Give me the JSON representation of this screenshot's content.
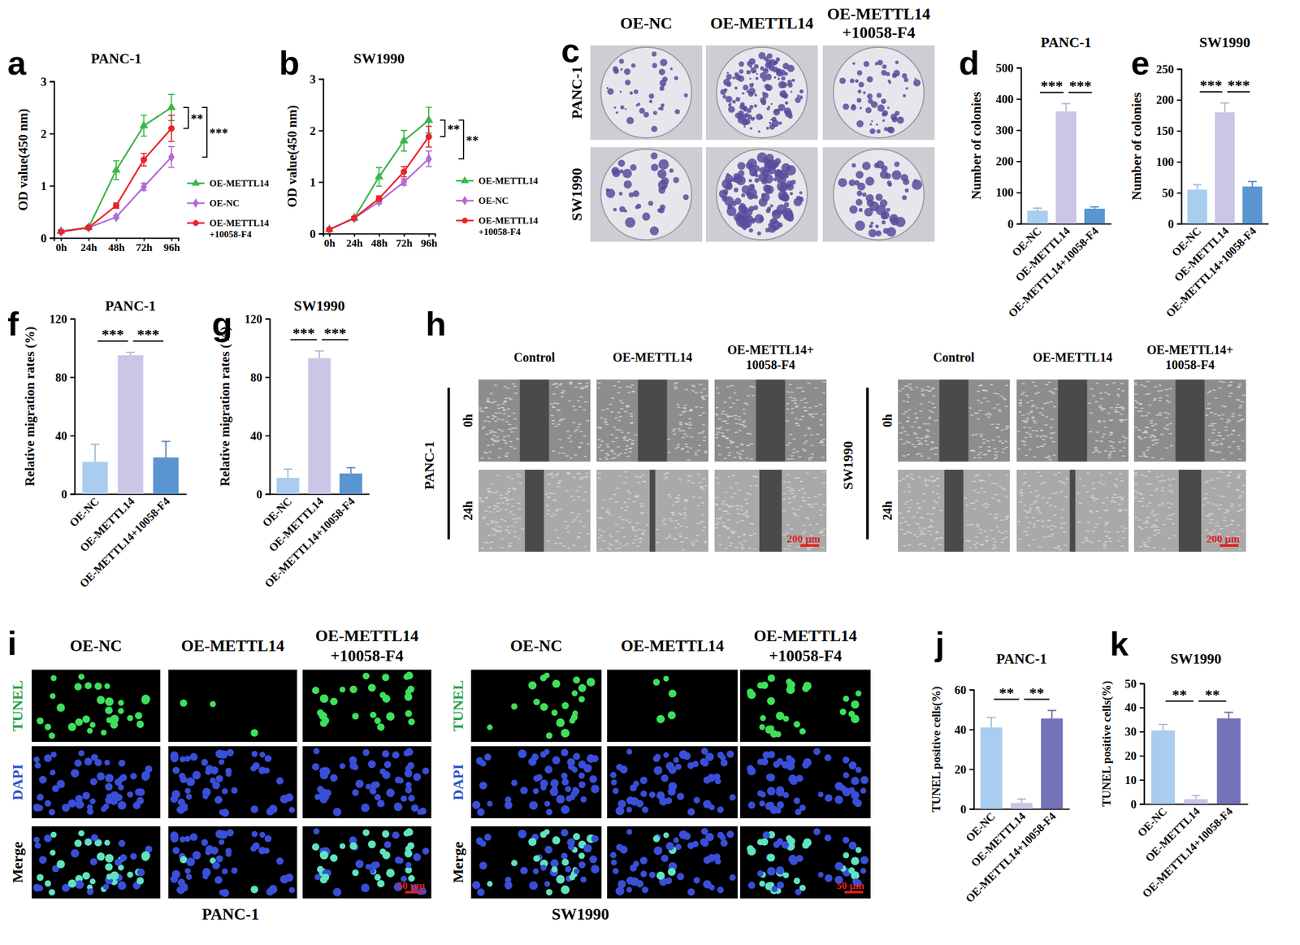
{
  "chart_data": [
    {
      "panel_label": "a",
      "type": "line",
      "title": "PANC-1",
      "y_label": "OD value(450 nm)",
      "categories": [
        "0h",
        "24h",
        "48h",
        "72h",
        "96h"
      ],
      "ylim": [
        0,
        3
      ],
      "yticks": [
        0,
        1,
        2,
        3
      ],
      "legend": "right",
      "series": [
        {
          "name": "OE-METTL14",
          "color": "#3bb54a",
          "marker": "triangle",
          "values": [
            0.13,
            0.2,
            1.3,
            2.15,
            2.5
          ],
          "errors": [
            0.03,
            0.03,
            0.18,
            0.2,
            0.25
          ]
        },
        {
          "name": "OE-NC",
          "color": "#b36ad8",
          "marker": "diamond",
          "values": [
            0.12,
            0.2,
            0.4,
            0.98,
            1.55
          ],
          "errors": [
            0.02,
            0.02,
            0.03,
            0.07,
            0.2
          ]
        },
        {
          "name": "OE-METTL14+10058-F4",
          "color": "#e8232c",
          "marker": "circle",
          "values": [
            0.12,
            0.2,
            0.62,
            1.5,
            2.1
          ],
          "errors": [
            0.02,
            0.02,
            0.05,
            0.12,
            0.25
          ]
        }
      ],
      "significance": [
        {
          "between": [
            "OE-METTL14",
            "OE-METTL14+10058-F4"
          ],
          "text": "**"
        },
        {
          "between": [
            "OE-METTL14",
            "OE-NC"
          ],
          "text": "***"
        }
      ]
    },
    {
      "panel_label": "b",
      "type": "line",
      "title": "SW1990",
      "y_label": "OD value(450 nm)",
      "categories": [
        "0h",
        "24h",
        "48h",
        "72h",
        "96h"
      ],
      "ylim": [
        0,
        3
      ],
      "yticks": [
        0,
        1,
        2,
        3
      ],
      "legend": "right",
      "series": [
        {
          "name": "OE-METTL14",
          "color": "#3bb54a",
          "marker": "triangle",
          "values": [
            0.08,
            0.3,
            1.1,
            1.8,
            2.2
          ],
          "errors": [
            0.02,
            0.03,
            0.18,
            0.2,
            0.25
          ]
        },
        {
          "name": "OE-NC",
          "color": "#b36ad8",
          "marker": "diamond",
          "values": [
            0.08,
            0.3,
            0.62,
            1.0,
            1.45
          ],
          "errors": [
            0.02,
            0.02,
            0.04,
            0.06,
            0.15
          ]
        },
        {
          "name": "OE-METTL14+10058-F4",
          "color": "#e8232c",
          "marker": "circle",
          "values": [
            0.08,
            0.3,
            0.68,
            1.2,
            1.88
          ],
          "errors": [
            0.02,
            0.02,
            0.05,
            0.1,
            0.2
          ]
        }
      ],
      "significance": [
        {
          "between": [
            "OE-METTL14",
            "OE-METTL14+10058-F4"
          ],
          "text": "**"
        },
        {
          "between": [
            "OE-METTL14",
            "OE-NC"
          ],
          "text": "**"
        }
      ]
    },
    {
      "panel_label": "d",
      "type": "bar",
      "title": "PANC-1",
      "y_label": "Number of colonies",
      "categories": [
        "OE-NC",
        "OE-METTL14",
        "OE-METTL14+10058-F4"
      ],
      "values": [
        42,
        360,
        48
      ],
      "errors": [
        8,
        25,
        6
      ],
      "colors": [
        "#a9cdef",
        "#c9c6e6",
        "#5b95cf"
      ],
      "ylim": [
        0,
        500
      ],
      "yticks": [
        0,
        100,
        200,
        300,
        400,
        500
      ],
      "significance": [
        {
          "between": [
            "OE-NC",
            "OE-METTL14"
          ],
          "text": "***"
        },
        {
          "between": [
            "OE-METTL14",
            "OE-METTL14+10058-F4"
          ],
          "text": "***"
        }
      ]
    },
    {
      "panel_label": "e",
      "type": "bar",
      "title": "SW1990",
      "y_label": "Number of colonies",
      "categories": [
        "OE-NC",
        "OE-METTL14",
        "OE-METTL14+10058-F4"
      ],
      "values": [
        55,
        180,
        60
      ],
      "errors": [
        8,
        15,
        8
      ],
      "colors": [
        "#a9cdef",
        "#c9c6e6",
        "#5b95cf"
      ],
      "ylim": [
        0,
        250
      ],
      "yticks": [
        0,
        50,
        100,
        150,
        200,
        250
      ],
      "significance": [
        {
          "between": [
            "OE-NC",
            "OE-METTL14"
          ],
          "text": "***"
        },
        {
          "between": [
            "OE-METTL14",
            "OE-METTL14+10058-F4"
          ],
          "text": "***"
        }
      ]
    },
    {
      "panel_label": "f",
      "type": "bar",
      "title": "PANC-1",
      "y_label": "Relative migration rates (%)",
      "categories": [
        "OE-NC",
        "OE-METTL14",
        "OE-METTL14+10058-F4"
      ],
      "values": [
        22,
        95,
        25
      ],
      "errors": [
        12,
        2,
        11
      ],
      "colors": [
        "#a9cdef",
        "#c9c6e6",
        "#5b95cf"
      ],
      "ylim": [
        0,
        120
      ],
      "yticks": [
        0,
        40,
        80,
        120
      ],
      "significance": [
        {
          "between": [
            "OE-NC",
            "OE-METTL14"
          ],
          "text": "***"
        },
        {
          "between": [
            "OE-METTL14",
            "OE-METTL14+10058-F4"
          ],
          "text": "***"
        }
      ]
    },
    {
      "panel_label": "g",
      "type": "bar",
      "title": "SW1990",
      "y_label": "Relative migration rates (%)",
      "categories": [
        "OE-NC",
        "OE-METTL14",
        "OE-METTL14+10058-F4"
      ],
      "values": [
        11,
        93,
        14
      ],
      "errors": [
        6,
        5,
        4
      ],
      "colors": [
        "#a9cdef",
        "#c9c6e6",
        "#5b95cf"
      ],
      "ylim": [
        0,
        120
      ],
      "yticks": [
        0,
        40,
        80,
        120
      ],
      "significance": [
        {
          "between": [
            "OE-NC",
            "OE-METTL14"
          ],
          "text": "***"
        },
        {
          "between": [
            "OE-METTL14",
            "OE-METTL14+10058-F4"
          ],
          "text": "***"
        }
      ]
    },
    {
      "panel_label": "j",
      "type": "bar",
      "title": "PANC-1",
      "y_label": "TUNEL positive cells(%)",
      "categories": [
        "OE-NC",
        "OE-METTL14",
        "OE-METTL14+10058-F4"
      ],
      "values": [
        41,
        3,
        45.5
      ],
      "errors": [
        5,
        2,
        4
      ],
      "colors": [
        "#a9cdef",
        "#c9c6e6",
        "#7472b9"
      ],
      "ylim": [
        0,
        60
      ],
      "yticks": [
        0,
        20,
        40,
        60
      ],
      "significance": [
        {
          "between": [
            "OE-NC",
            "OE-METTL14"
          ],
          "text": "**"
        },
        {
          "between": [
            "OE-METTL14",
            "OE-METTL14+10058-F4"
          ],
          "text": "**"
        }
      ]
    },
    {
      "panel_label": "k",
      "type": "bar",
      "title": "SW1990",
      "y_label": "TUNEL positive cells(%)",
      "categories": [
        "OE-NC",
        "OE-METTL14",
        "OE-METTL14+10058-F4"
      ],
      "values": [
        30.5,
        2,
        35.5
      ],
      "errors": [
        2.5,
        1.5,
        2.5
      ],
      "colors": [
        "#a9cdef",
        "#c9c6e6",
        "#7472b9"
      ],
      "ylim": [
        0,
        50
      ],
      "yticks": [
        0,
        10,
        20,
        30,
        40,
        50
      ],
      "significance": [
        {
          "between": [
            "OE-NC",
            "OE-METTL14"
          ],
          "text": "**"
        },
        {
          "between": [
            "OE-METTL14",
            "OE-METTL14+10058-F4"
          ],
          "text": "**"
        }
      ]
    }
  ],
  "image_panels": [
    {
      "panel_label": "c",
      "groups": [
        {
          "columns": [
            [
              "OE-NC"
            ],
            [
              "OE-METTL14"
            ],
            [
              "OE-METTL14",
              "+10058-F4"
            ]
          ],
          "rows": [
            "PANC-1",
            "SW1990"
          ]
        }
      ]
    },
    {
      "panel_label": "h",
      "groups": [
        {
          "name": "PANC-1",
          "columns": [
            [
              "Control"
            ],
            [
              "OE-METTL14"
            ],
            [
              "OE-METTL14+",
              "10058-F4"
            ]
          ],
          "rows": [
            "0h",
            "24h"
          ],
          "scale_bar": "200 μm"
        },
        {
          "name": "SW1990",
          "columns": [
            [
              "Control"
            ],
            [
              "OE-METTL14"
            ],
            [
              "OE-METTL14+",
              "10058-F4"
            ]
          ],
          "rows": [
            "0h",
            "24h"
          ],
          "scale_bar": "200 μm"
        }
      ]
    },
    {
      "panel_label": "i",
      "groups": [
        {
          "name": "PANC-1",
          "columns": [
            [
              "OE-NC"
            ],
            [
              "OE-METTL14"
            ],
            [
              "OE-METTL14",
              "+10058-F4"
            ]
          ],
          "rows": [
            "TUNEL",
            "DAPI",
            "Merge"
          ],
          "scale_bar": "50 μm"
        },
        {
          "name": "SW1990",
          "columns": [
            [
              "OE-NC"
            ],
            [
              "OE-METTL14"
            ],
            [
              "OE-METTL14",
              "+10058-F4"
            ]
          ],
          "rows": [
            "TUNEL",
            "DAPI",
            "Merge"
          ],
          "scale_bar": "50 μm"
        }
      ]
    }
  ]
}
